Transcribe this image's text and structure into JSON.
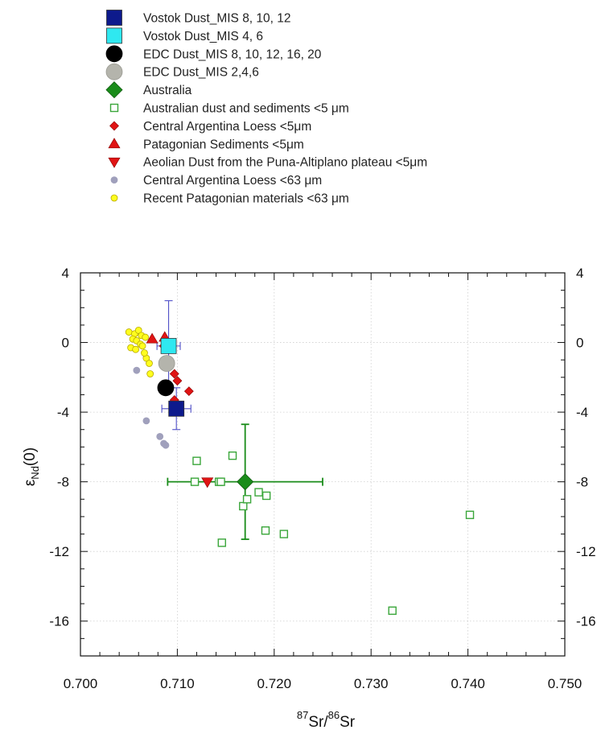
{
  "chart_data": {
    "type": "scatter",
    "title": "",
    "xlabel": {
      "sup1": "87",
      "base1": "Sr",
      "mid": "/",
      "sup2": "86",
      "base2": "Sr"
    },
    "ylabel": {
      "base": "ε",
      "sub": "Nd",
      "tail": "(0)"
    },
    "xlim": [
      0.7,
      0.75
    ],
    "ylim": [
      -18,
      4
    ],
    "x_ticks": [
      "0.700",
      "0.710",
      "0.720",
      "0.730",
      "0.740",
      "0.750"
    ],
    "y_ticks": [
      "4",
      "0",
      "-4",
      "-8",
      "-12",
      "-16"
    ],
    "grid": true,
    "legend_position": "top",
    "series": [
      {
        "name": "Vostok Dust_MIS 8, 10, 12",
        "marker": "square-filled",
        "color": "#0d1a8c",
        "points": [
          [
            0.7099,
            -3.8
          ]
        ],
        "error_bars": [
          {
            "x": 0.7099,
            "y": -3.8,
            "xerr": 0.0015,
            "yerr": 1.2
          }
        ]
      },
      {
        "name": "Vostok Dust_MIS 4, 6",
        "marker": "square-filled",
        "color": "#2fe8f0",
        "points": [
          [
            0.7091,
            -0.2
          ]
        ],
        "error_bars": [
          {
            "x": 0.7091,
            "y": -0.2,
            "xerr": 0.0012,
            "yerr": 2.6
          }
        ]
      },
      {
        "name": "EDC Dust_MIS 8, 10, 12, 16, 20",
        "marker": "circle-filled",
        "color": "#000000",
        "points": [
          [
            0.7088,
            -2.6
          ]
        ]
      },
      {
        "name": "EDC Dust_MIS 2,4,6",
        "marker": "circle-filled",
        "color": "#b4b4ac",
        "points": [
          [
            0.7089,
            -1.2
          ]
        ]
      },
      {
        "name": "Australia",
        "marker": "diamond-filled",
        "color": "#1a8c1a",
        "points": [
          [
            0.717,
            -8.0
          ]
        ],
        "error_bars": [
          {
            "x": 0.717,
            "y": -8.0,
            "xerr": 0.008,
            "yerr": 3.3
          }
        ]
      },
      {
        "name": "Australian dust and sediments <5 μm",
        "marker": "square-open",
        "color": "#3aa63a",
        "points": [
          [
            0.712,
            -6.8
          ],
          [
            0.7157,
            -6.5
          ],
          [
            0.7118,
            -8.0
          ],
          [
            0.7143,
            -8.0
          ],
          [
            0.7145,
            -8.0
          ],
          [
            0.7168,
            -9.4
          ],
          [
            0.7172,
            -9.0
          ],
          [
            0.7184,
            -8.6
          ],
          [
            0.7192,
            -8.8
          ],
          [
            0.7191,
            -10.8
          ],
          [
            0.721,
            -11.0
          ],
          [
            0.7146,
            -11.5
          ],
          [
            0.7322,
            -15.4
          ],
          [
            0.7402,
            -9.9
          ]
        ]
      },
      {
        "name": "Central Argentina Loess <5μm",
        "marker": "diamond-small",
        "color": "#e01414",
        "points": [
          [
            0.7086,
            -0.2
          ],
          [
            0.7097,
            -1.8
          ],
          [
            0.71,
            -2.2
          ],
          [
            0.7112,
            -2.8
          ],
          [
            0.7097,
            -3.3
          ]
        ]
      },
      {
        "name": "Patagonian Sediments <5μm",
        "marker": "triangle-up",
        "color": "#e01414",
        "points": [
          [
            0.7074,
            0.2
          ],
          [
            0.7087,
            0.3
          ]
        ]
      },
      {
        "name": "Aeolian Dust from the Puna-Altiplano plateau <5μm",
        "marker": "triangle-down",
        "color": "#e01414",
        "points": [
          [
            0.7131,
            -8.0
          ]
        ]
      },
      {
        "name": "Central Argentina Loess <63 μm",
        "marker": "circle-small",
        "color": "#a0a0bc",
        "points": [
          [
            0.7058,
            -1.6
          ],
          [
            0.7068,
            -4.5
          ],
          [
            0.7082,
            -5.4
          ],
          [
            0.7086,
            -5.8
          ],
          [
            0.7088,
            -5.9
          ]
        ]
      },
      {
        "name": "Recent Patagonian materials <63 μm",
        "marker": "circle-small",
        "color": "#ffff1e",
        "points": [
          [
            0.705,
            0.6
          ],
          [
            0.7056,
            0.5
          ],
          [
            0.706,
            0.7
          ],
          [
            0.7063,
            0.4
          ],
          [
            0.7054,
            0.2
          ],
          [
            0.7058,
            0.1
          ],
          [
            0.7062,
            -0.1
          ],
          [
            0.7067,
            0.3
          ],
          [
            0.7052,
            -0.3
          ],
          [
            0.7057,
            -0.4
          ],
          [
            0.7064,
            -0.2
          ],
          [
            0.7068,
            -0.9
          ],
          [
            0.7066,
            -0.6
          ],
          [
            0.7071,
            -1.2
          ],
          [
            0.7072,
            -1.8
          ]
        ]
      }
    ]
  }
}
